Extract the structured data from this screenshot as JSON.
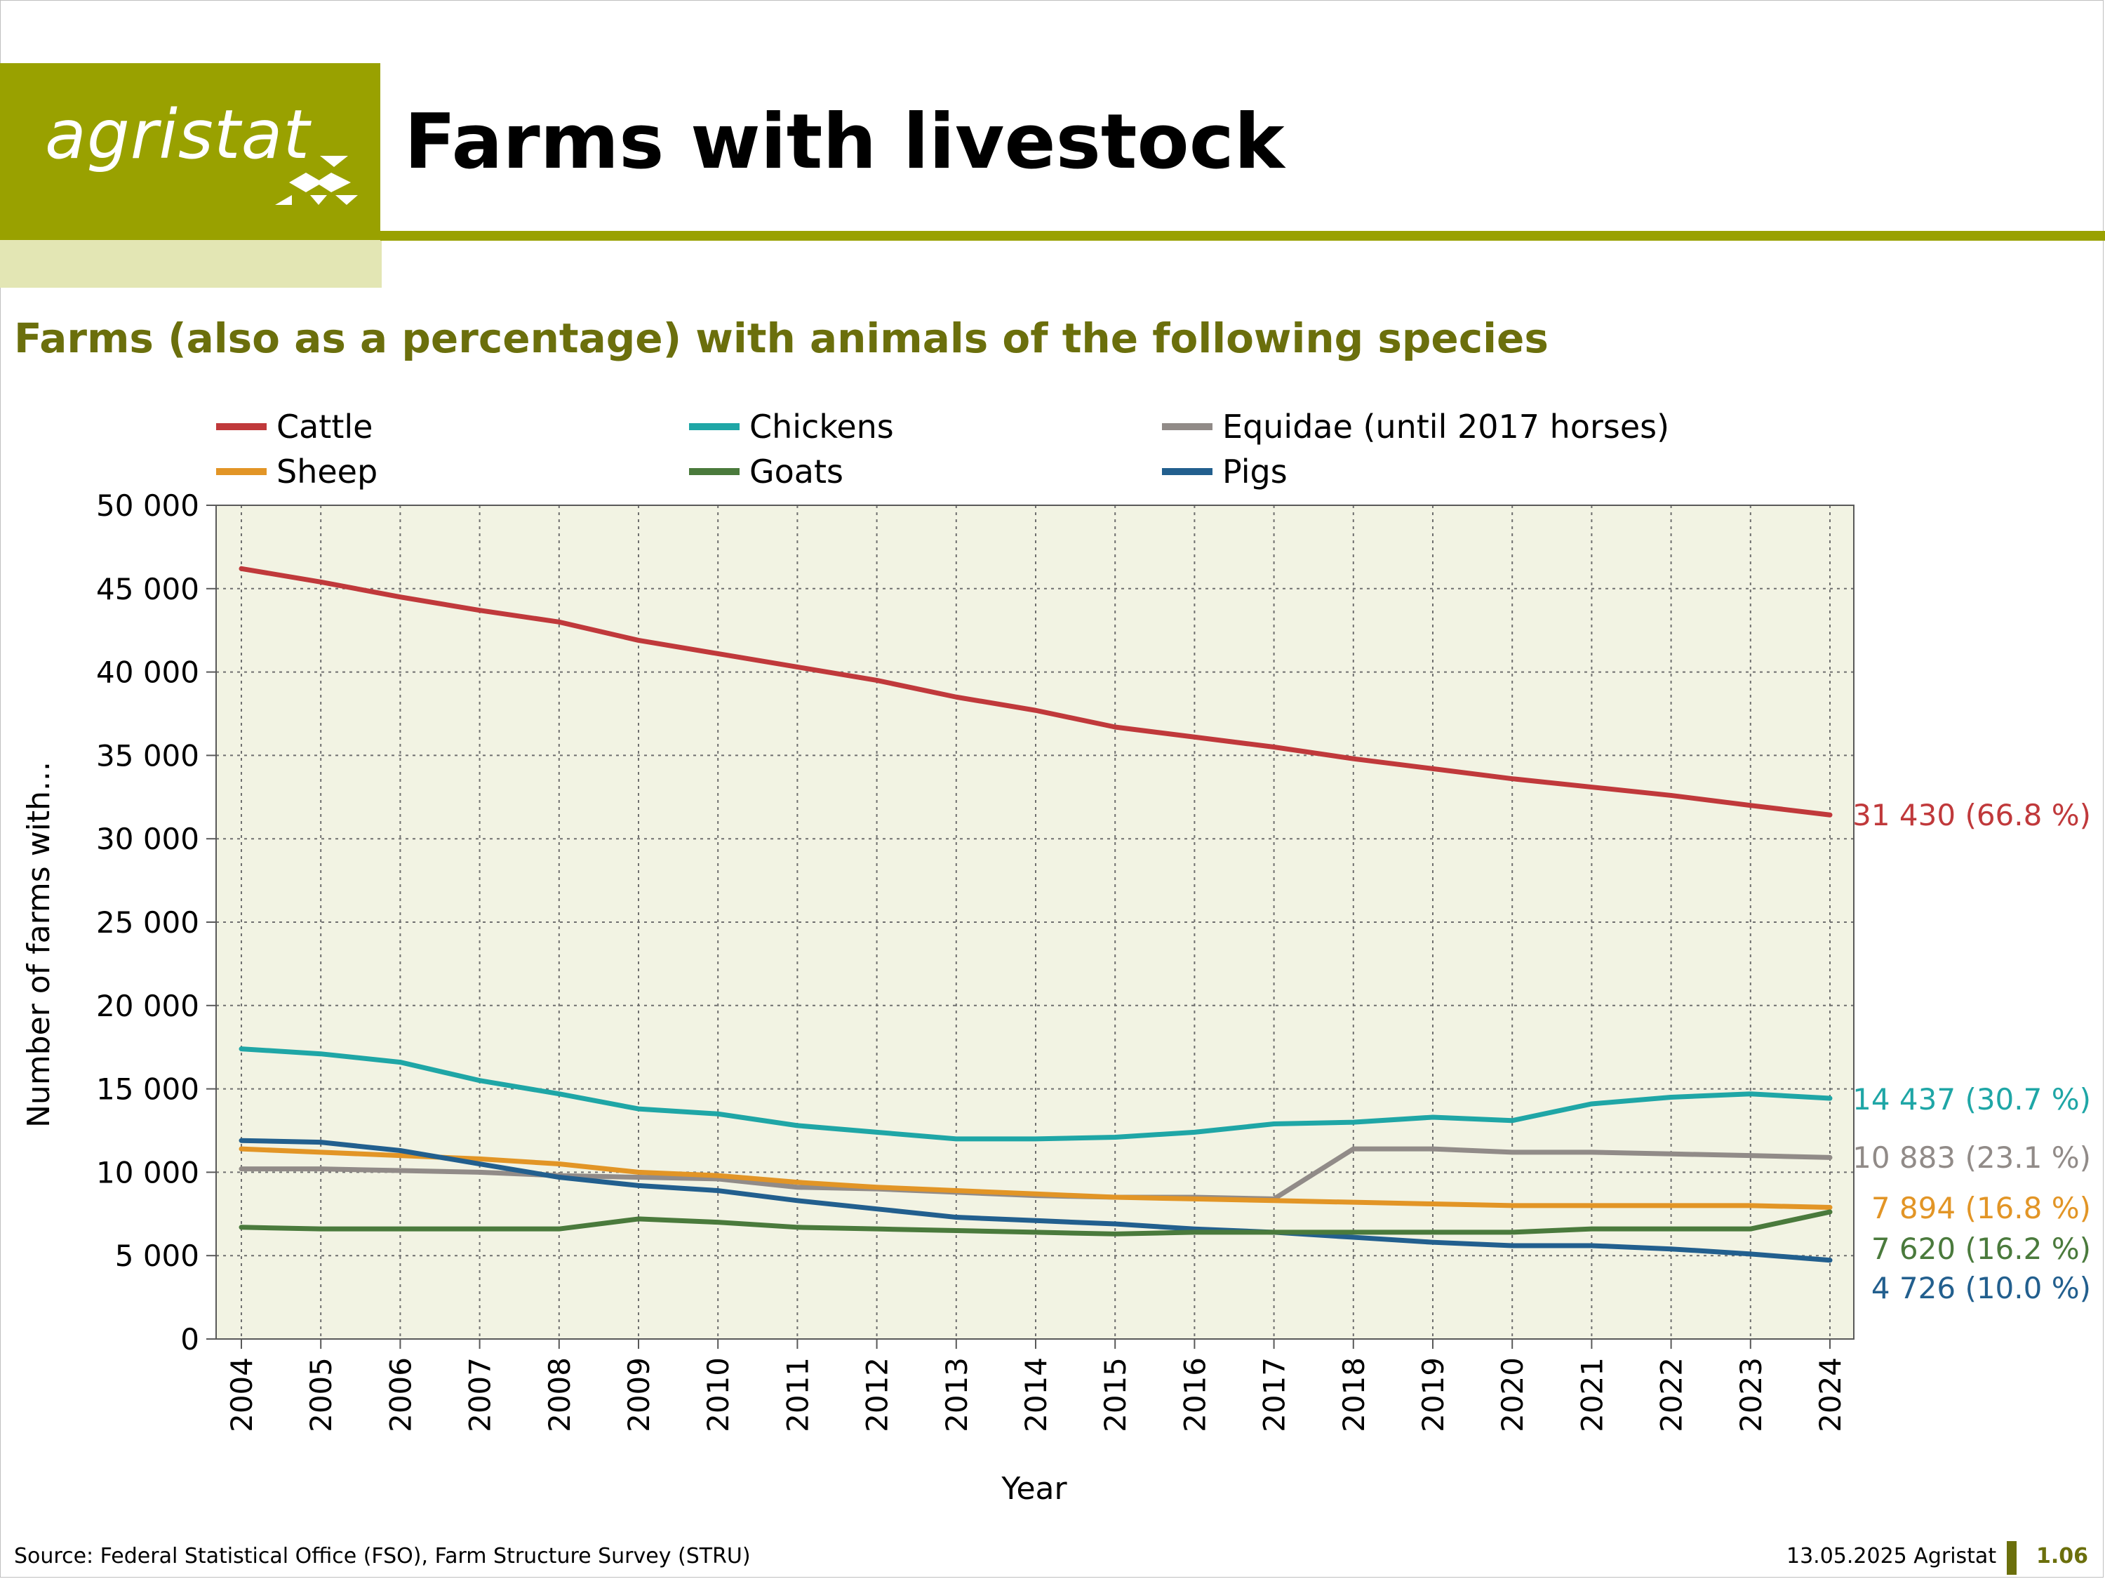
{
  "header": {
    "logo_text": "agristat",
    "title": "Farms with livestock",
    "brand_color": "#99a100"
  },
  "subtitle": "Farms (also as a percentage) with animals of the following species",
  "footer": {
    "source": "Source: Federal Statistical Office (FSO), Farm Structure Survey (STRU)",
    "date_org": "13.05.2025 Agristat",
    "page": "1.06"
  },
  "chart_data": {
    "type": "line",
    "xlabel": "Year",
    "ylabel": "Number of farms with...",
    "ylim": [
      0,
      50000
    ],
    "yticks": [
      0,
      5000,
      10000,
      15000,
      20000,
      25000,
      30000,
      35000,
      40000,
      45000,
      50000
    ],
    "ytick_labels": [
      "0",
      "5 000",
      "10 000",
      "15 000",
      "20 000",
      "25 000",
      "30 000",
      "35 000",
      "40 000",
      "45 000",
      "50 000"
    ],
    "x": [
      2004,
      2005,
      2006,
      2007,
      2008,
      2009,
      2010,
      2011,
      2012,
      2013,
      2014,
      2015,
      2016,
      2017,
      2018,
      2019,
      2020,
      2021,
      2022,
      2023,
      2024
    ],
    "grid": true,
    "legend_position": "top",
    "series": [
      {
        "name": "Cattle",
        "color": "#c0393b",
        "values": [
          46200,
          45400,
          44500,
          43700,
          43000,
          41900,
          41100,
          40300,
          39500,
          38500,
          37700,
          36700,
          36100,
          35500,
          34800,
          34200,
          33600,
          33100,
          32600,
          32000,
          31430
        ],
        "end_label": "31 430 (66.8 %)"
      },
      {
        "name": "Chickens",
        "color": "#1fa6a6",
        "values": [
          17400,
          17100,
          16600,
          15500,
          14700,
          13800,
          13500,
          12800,
          12400,
          12000,
          12000,
          12100,
          12400,
          12900,
          13000,
          13300,
          13100,
          14100,
          14500,
          14700,
          14437
        ],
        "end_label": "14 437 (30.7 %)"
      },
      {
        "name": "Equidae (until 2017 horses)",
        "color": "#918b88",
        "values": [
          10200,
          10200,
          10100,
          10000,
          9800,
          9700,
          9600,
          9100,
          9000,
          8800,
          8600,
          8500,
          8500,
          8400,
          11400,
          11400,
          11200,
          11200,
          11100,
          11000,
          10883
        ],
        "end_label": "10 883 (23.1 %)"
      },
      {
        "name": "Sheep",
        "color": "#e29526",
        "values": [
          11400,
          11200,
          11000,
          10800,
          10500,
          10000,
          9800,
          9400,
          9100,
          8900,
          8700,
          8500,
          8400,
          8300,
          8200,
          8100,
          8000,
          8000,
          8000,
          8000,
          7894
        ],
        "end_label": "7 894 (16.8 %)"
      },
      {
        "name": "Goats",
        "color": "#4a7a3c",
        "values": [
          6700,
          6600,
          6600,
          6600,
          6600,
          7200,
          7000,
          6700,
          6600,
          6500,
          6400,
          6300,
          6400,
          6400,
          6400,
          6400,
          6400,
          6600,
          6600,
          6600,
          7620
        ],
        "end_label": "7 620 (16.2 %)"
      },
      {
        "name": "Pigs",
        "color": "#225f8e",
        "values": [
          11900,
          11800,
          11300,
          10500,
          9700,
          9200,
          8900,
          8300,
          7800,
          7300,
          7100,
          6900,
          6600,
          6400,
          6100,
          5800,
          5600,
          5600,
          5400,
          5100,
          4726
        ],
        "end_label": "4 726 (10.0 %)"
      }
    ]
  }
}
